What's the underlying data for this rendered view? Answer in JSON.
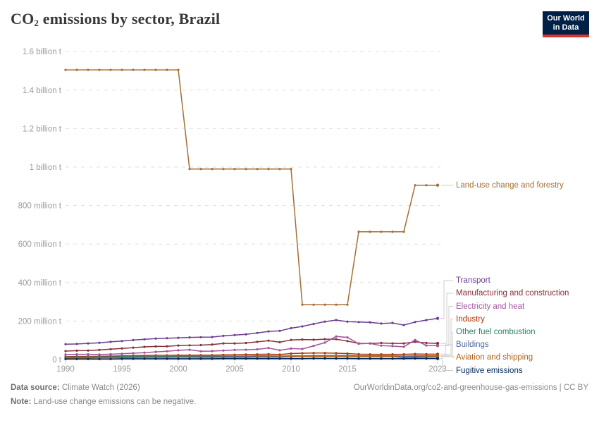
{
  "header": {
    "title": {
      "prefix": "CO",
      "sub": "2",
      "rest": " emissions by sector, Brazil"
    },
    "logo": {
      "line1": "Our World",
      "line2": "in Data"
    }
  },
  "footer": {
    "source_label": "Data source:",
    "source_value": " Climate Watch (2026)",
    "note_label": "Note:",
    "note_value": " Land-use change emissions can be negative.",
    "link": "OurWorldinData.org/co2-and-greenhouse-gas-emissions | CC BY"
  },
  "chart_data": {
    "type": "line",
    "title": "CO2 emissions by sector, Brazil",
    "unit": "million t",
    "ylim": [
      0,
      1600
    ],
    "grid": "horizontal-dashed",
    "legend_position": "right-of-line-endpoints",
    "years": [
      1990,
      1991,
      1992,
      1993,
      1994,
      1995,
      1996,
      1997,
      1998,
      1999,
      2000,
      2001,
      2002,
      2003,
      2004,
      2005,
      2006,
      2007,
      2008,
      2009,
      2010,
      2011,
      2012,
      2013,
      2014,
      2015,
      2016,
      2017,
      2018,
      2019,
      2020,
      2021,
      2022,
      2023
    ],
    "x_ticks": [
      1990,
      1995,
      2000,
      2005,
      2010,
      2015,
      2023
    ],
    "y_ticks": [
      {
        "value": 0,
        "label": "0 t"
      },
      {
        "value": 200,
        "label": "200 million t"
      },
      {
        "value": 400,
        "label": "400 million t"
      },
      {
        "value": 600,
        "label": "600 million t"
      },
      {
        "value": 800,
        "label": "800 million t"
      },
      {
        "value": 1000,
        "label": "1 billion t"
      },
      {
        "value": 1200,
        "label": "1.2 billion t"
      },
      {
        "value": 1400,
        "label": "1.4 billion t"
      },
      {
        "value": 1600,
        "label": "1.6 billion t"
      }
    ],
    "series": [
      {
        "name": "Land-use change and forestry",
        "slug": "land-use-change-and-forestry",
        "color": "#A56F33",
        "leader": {
          "straight": true,
          "label_y": 263
        },
        "values": [
          1505,
          1505,
          1505,
          1505,
          1505,
          1505,
          1505,
          1505,
          1505,
          1505,
          1505,
          990,
          990,
          990,
          990,
          990,
          990,
          990,
          990,
          990,
          990,
          285,
          285,
          285,
          285,
          285,
          664,
          664,
          664,
          664,
          664,
          906,
          906,
          906
        ]
      },
      {
        "name": "Transport",
        "slug": "transport",
        "color": "#6D3E91",
        "leader": {
          "straight": false,
          "elbow_x": 630,
          "label_y": 398
        },
        "values": [
          80,
          81,
          84,
          87,
          92,
          96,
          101,
          105,
          109,
          111,
          113,
          115,
          116,
          117,
          123,
          127,
          131,
          138,
          146,
          149,
          163,
          172,
          185,
          197,
          205,
          197,
          195,
          193,
          187,
          190,
          179,
          195,
          205,
          214
        ]
      },
      {
        "name": "Manufacturing and construction",
        "slug": "manufacturing-and-construction",
        "color": "#883039",
        "leader": {
          "straight": false,
          "elbow_x": 634,
          "label_y": 416
        },
        "values": [
          44,
          46,
          47,
          50,
          54,
          58,
          62,
          66,
          68,
          69,
          73,
          74,
          75,
          78,
          84,
          84,
          86,
          92,
          98,
          90,
          102,
          104,
          103,
          106,
          106,
          96,
          84,
          84,
          86,
          84,
          84,
          92,
          86,
          84
        ]
      },
      {
        "name": "Electricity and heat",
        "slug": "electricity-and-heat",
        "color": "#A2559C",
        "leader": {
          "straight": false,
          "elbow_x": 637,
          "label_y": 434.5
        },
        "values": [
          26,
          27,
          27,
          26,
          28,
          30,
          33,
          36,
          40,
          43,
          48,
          51,
          43,
          44,
          47,
          50,
          51,
          53,
          60,
          48,
          57,
          55,
          71,
          88,
          120,
          115,
          82,
          84,
          72,
          70,
          66,
          102,
          73,
          72
        ]
      },
      {
        "name": "Industry",
        "slug": "industry",
        "color": "#B13507",
        "leader": {
          "straight": false,
          "elbow_x": 640,
          "label_y": 452.5
        },
        "values": [
          15,
          16,
          16,
          17,
          18,
          19,
          20,
          21,
          22,
          22,
          23,
          23,
          23,
          23,
          24,
          25,
          26,
          27,
          28,
          26,
          31,
          33,
          34,
          34,
          33,
          31,
          28,
          27,
          27,
          27,
          27,
          29,
          28,
          28
        ]
      },
      {
        "name": "Other fuel combustion",
        "slug": "other-fuel-combustion",
        "color": "#2C8465",
        "leader": {
          "straight": false,
          "elbow_x": 642,
          "label_y": 471
        },
        "values": [
          13,
          13,
          13,
          14,
          14,
          15,
          15,
          16,
          16,
          16,
          17,
          17,
          17,
          17,
          18,
          18,
          18,
          19,
          19,
          18,
          19,
          19,
          20,
          20,
          21,
          20,
          19,
          19,
          19,
          19,
          18,
          19,
          19,
          19
        ]
      },
      {
        "name": "Buildings",
        "slug": "buildings",
        "color": "#4C6A9C",
        "leader": {
          "straight": false,
          "elbow_x": 632,
          "label_y": 489
        },
        "values": [
          10,
          10,
          10,
          11,
          11,
          12,
          12,
          13,
          13,
          13,
          14,
          14,
          14,
          14,
          15,
          15,
          15,
          16,
          16,
          16,
          17,
          17,
          17,
          18,
          18,
          17,
          17,
          17,
          17,
          17,
          16,
          17,
          17,
          17
        ]
      },
      {
        "name": "Aviation and shipping",
        "slug": "aviation-and-shipping",
        "color": "#B16214",
        "leader": {
          "straight": false,
          "elbow_x": 644,
          "label_y": 507
        },
        "values": [
          8,
          8,
          8,
          9,
          9,
          10,
          10,
          11,
          11,
          11,
          12,
          12,
          11,
          11,
          12,
          12,
          12,
          13,
          13,
          13,
          15,
          16,
          16,
          16,
          17,
          16,
          15,
          15,
          15,
          16,
          10,
          12,
          14,
          15
        ]
      },
      {
        "name": "Fugitive emissions",
        "slug": "fugitive-emissions",
        "color": "#00295B",
        "leader": {
          "straight": false,
          "elbow_x": 628,
          "label_y": 525.5
        },
        "values": [
          3,
          3,
          3,
          3,
          3,
          4,
          4,
          4,
          4,
          4,
          4,
          4,
          4,
          4,
          5,
          5,
          5,
          5,
          5,
          5,
          5,
          5,
          6,
          6,
          6,
          6,
          5,
          5,
          5,
          5,
          5,
          6,
          6,
          6
        ]
      }
    ]
  }
}
